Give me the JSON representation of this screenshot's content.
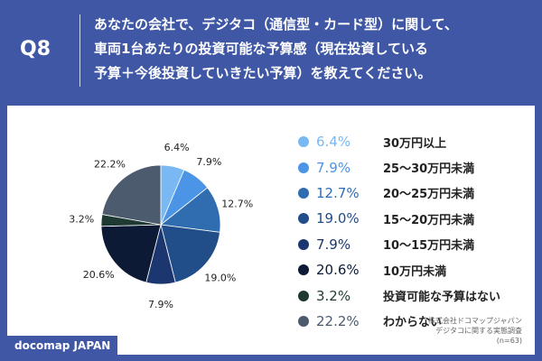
{
  "header": {
    "badge": "Q8",
    "question_lines": [
      "あなたの会社で、デジタコ（通信型・カード型）に関して、",
      "車両1台あたりの投資可能な予算感（現在投資している",
      "予算＋今後投資していきたい予算）を教えてください。"
    ]
  },
  "chart_data": {
    "type": "pie",
    "categories": [
      "30万円以上",
      "25〜30万円未満",
      "20〜25万円未満",
      "15〜20万円未満",
      "10〜15万円未満",
      "10万円未満",
      "投資可能な予算はない",
      "わからない"
    ],
    "values": [
      6.4,
      7.9,
      12.7,
      19.0,
      7.9,
      20.6,
      3.2,
      22.2
    ],
    "labels": [
      "6.4%",
      "7.9%",
      "12.7%",
      "19.0%",
      "7.9%",
      "20.6%",
      "3.2%",
      "22.2%"
    ],
    "colors": [
      "#79b8f3",
      "#4c94e6",
      "#2f6db0",
      "#214d88",
      "#1c3670",
      "#0c1a36",
      "#1f3a33",
      "#4d5b6e"
    ],
    "legend_colors": [
      "#79b8f3",
      "#4c94e6",
      "#2f6db0",
      "#214d88",
      "#1c3670",
      "#0c1a36",
      "#1f3a33",
      "#4d5b6e"
    ],
    "legend_placement": "right",
    "start": "12 o'clock, clockwise"
  },
  "footer": {
    "brand": "docomap JAPAN",
    "source_lines": [
      "株式会社ドコマップジャパン",
      "デジタコに関する実態調査",
      "(n=63)"
    ]
  }
}
